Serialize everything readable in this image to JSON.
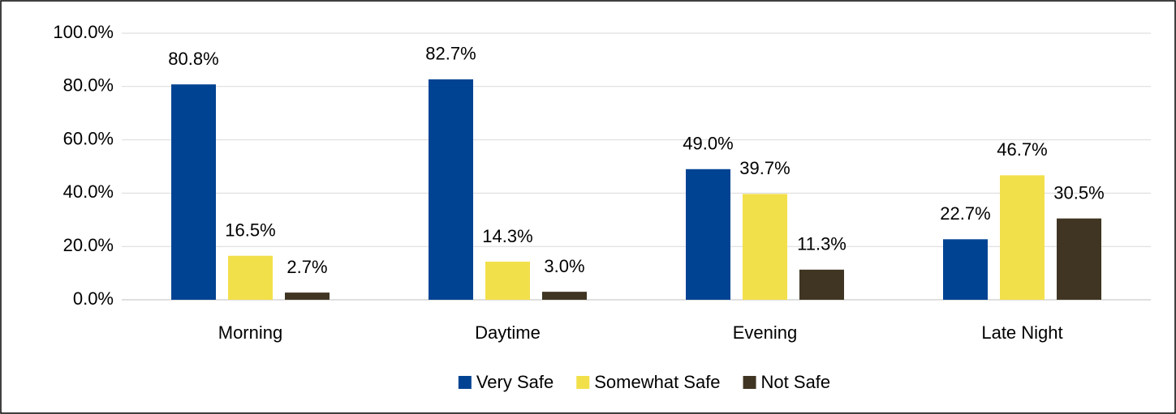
{
  "chart_data": {
    "type": "bar",
    "categories": [
      "Morning",
      "Daytime",
      "Evening",
      "Late Night"
    ],
    "series": [
      {
        "name": "Very Safe",
        "color": "#004393",
        "values": [
          80.8,
          82.7,
          49.0,
          22.7
        ],
        "value_labels": [
          "80.8%",
          "82.7%",
          "49.0%",
          "22.7%"
        ]
      },
      {
        "name": "Somewhat Safe",
        "color": "#f2e04b",
        "values": [
          16.5,
          14.3,
          39.7,
          46.7
        ],
        "value_labels": [
          "16.5%",
          "14.3%",
          "39.7%",
          "46.7%"
        ]
      },
      {
        "name": "Not Safe",
        "color": "#3f3522",
        "values": [
          2.7,
          3.0,
          11.3,
          30.5
        ],
        "value_labels": [
          "2.7%",
          "3.0%",
          "11.3%",
          "30.5%"
        ]
      }
    ],
    "ylim": [
      0,
      100
    ],
    "yticks": [
      {
        "value": 0,
        "label": "0.0%"
      },
      {
        "value": 20,
        "label": "20.0%"
      },
      {
        "value": 40,
        "label": "40.0%"
      },
      {
        "value": 60,
        "label": "60.0%"
      },
      {
        "value": 80,
        "label": "80.0%"
      },
      {
        "value": 100,
        "label": "100.0%"
      }
    ],
    "grid": true,
    "legend": "bottom"
  }
}
